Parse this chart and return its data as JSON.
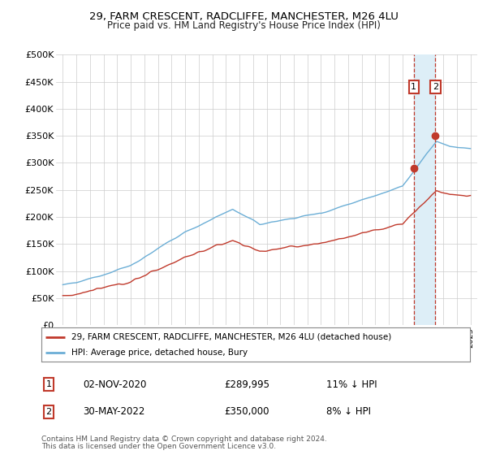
{
  "title": "29, FARM CRESCENT, RADCLIFFE, MANCHESTER, M26 4LU",
  "subtitle": "Price paid vs. HM Land Registry's House Price Index (HPI)",
  "ylim": [
    0,
    500000
  ],
  "xlim": [
    1994.5,
    2025.5
  ],
  "yticks": [
    0,
    50000,
    100000,
    150000,
    200000,
    250000,
    300000,
    350000,
    400000,
    450000,
    500000
  ],
  "ytick_labels": [
    "£0",
    "£50K",
    "£100K",
    "£150K",
    "£200K",
    "£250K",
    "£300K",
    "£350K",
    "£400K",
    "£450K",
    "£500K"
  ],
  "hpi_color": "#6baed6",
  "price_color": "#c0392b",
  "marker1_date": 2020.83,
  "marker2_date": 2022.42,
  "marker1_price": 289995,
  "marker2_price": 350000,
  "marker1_label": "02-NOV-2020",
  "marker2_label": "30-MAY-2022",
  "marker1_text": "11% ↓ HPI",
  "marker2_text": "8% ↓ HPI",
  "shade_color": "#ddeef7",
  "legend_entry1": "29, FARM CRESCENT, RADCLIFFE, MANCHESTER, M26 4LU (detached house)",
  "legend_entry2": "HPI: Average price, detached house, Bury",
  "footnote1": "Contains HM Land Registry data © Crown copyright and database right 2024.",
  "footnote2": "This data is licensed under the Open Government Licence v3.0.",
  "background_color": "#ffffff",
  "grid_color": "#cccccc"
}
